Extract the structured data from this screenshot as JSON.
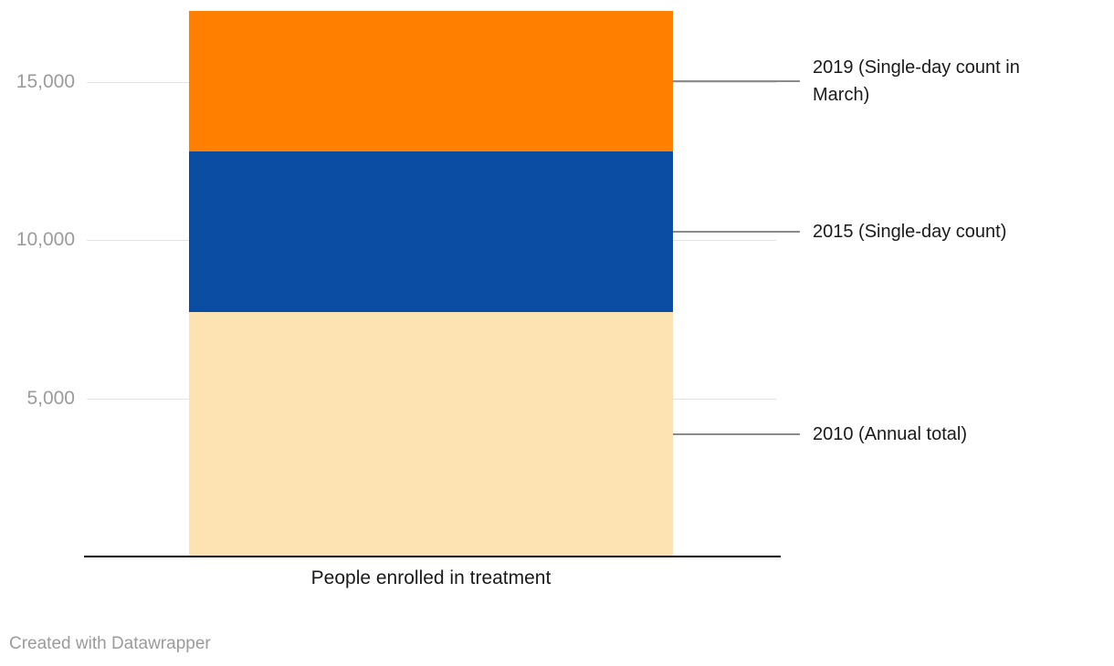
{
  "chart_data": {
    "type": "bar",
    "subtype": "single-column-stacked",
    "title": "",
    "xlabel": "People enrolled in treatment",
    "ylabel": "",
    "ylim": [
      0,
      17300
    ],
    "grid": true,
    "legend_position": "right-side-annotations",
    "categories": [
      "People enrolled in treatment"
    ],
    "yticks": [
      {
        "value": 5000,
        "label": "5,000"
      },
      {
        "value": 10000,
        "label": "10,000"
      },
      {
        "value": 15000,
        "label": "15,000"
      }
    ],
    "series": [
      {
        "name": "2010 (Annual total)",
        "values": [
          7730
        ],
        "color": "#fde2b2"
      },
      {
        "name": "2015 (Single-day count)",
        "values": [
          5070
        ],
        "color": "#0b4da2"
      },
      {
        "name": "2019 (Single-day count in March)",
        "values": [
          4450
        ],
        "color": "#ff7f00"
      }
    ],
    "stack_total": 17250
  },
  "colors": {
    "axis_line": "#010101",
    "gridline": "#e3e3e3",
    "tick_label": "#9b9b9b",
    "annotation_text": "#1a1a1a",
    "connector": "#8c8c8c"
  },
  "footer": {
    "credit": "Created with Datawrapper"
  }
}
